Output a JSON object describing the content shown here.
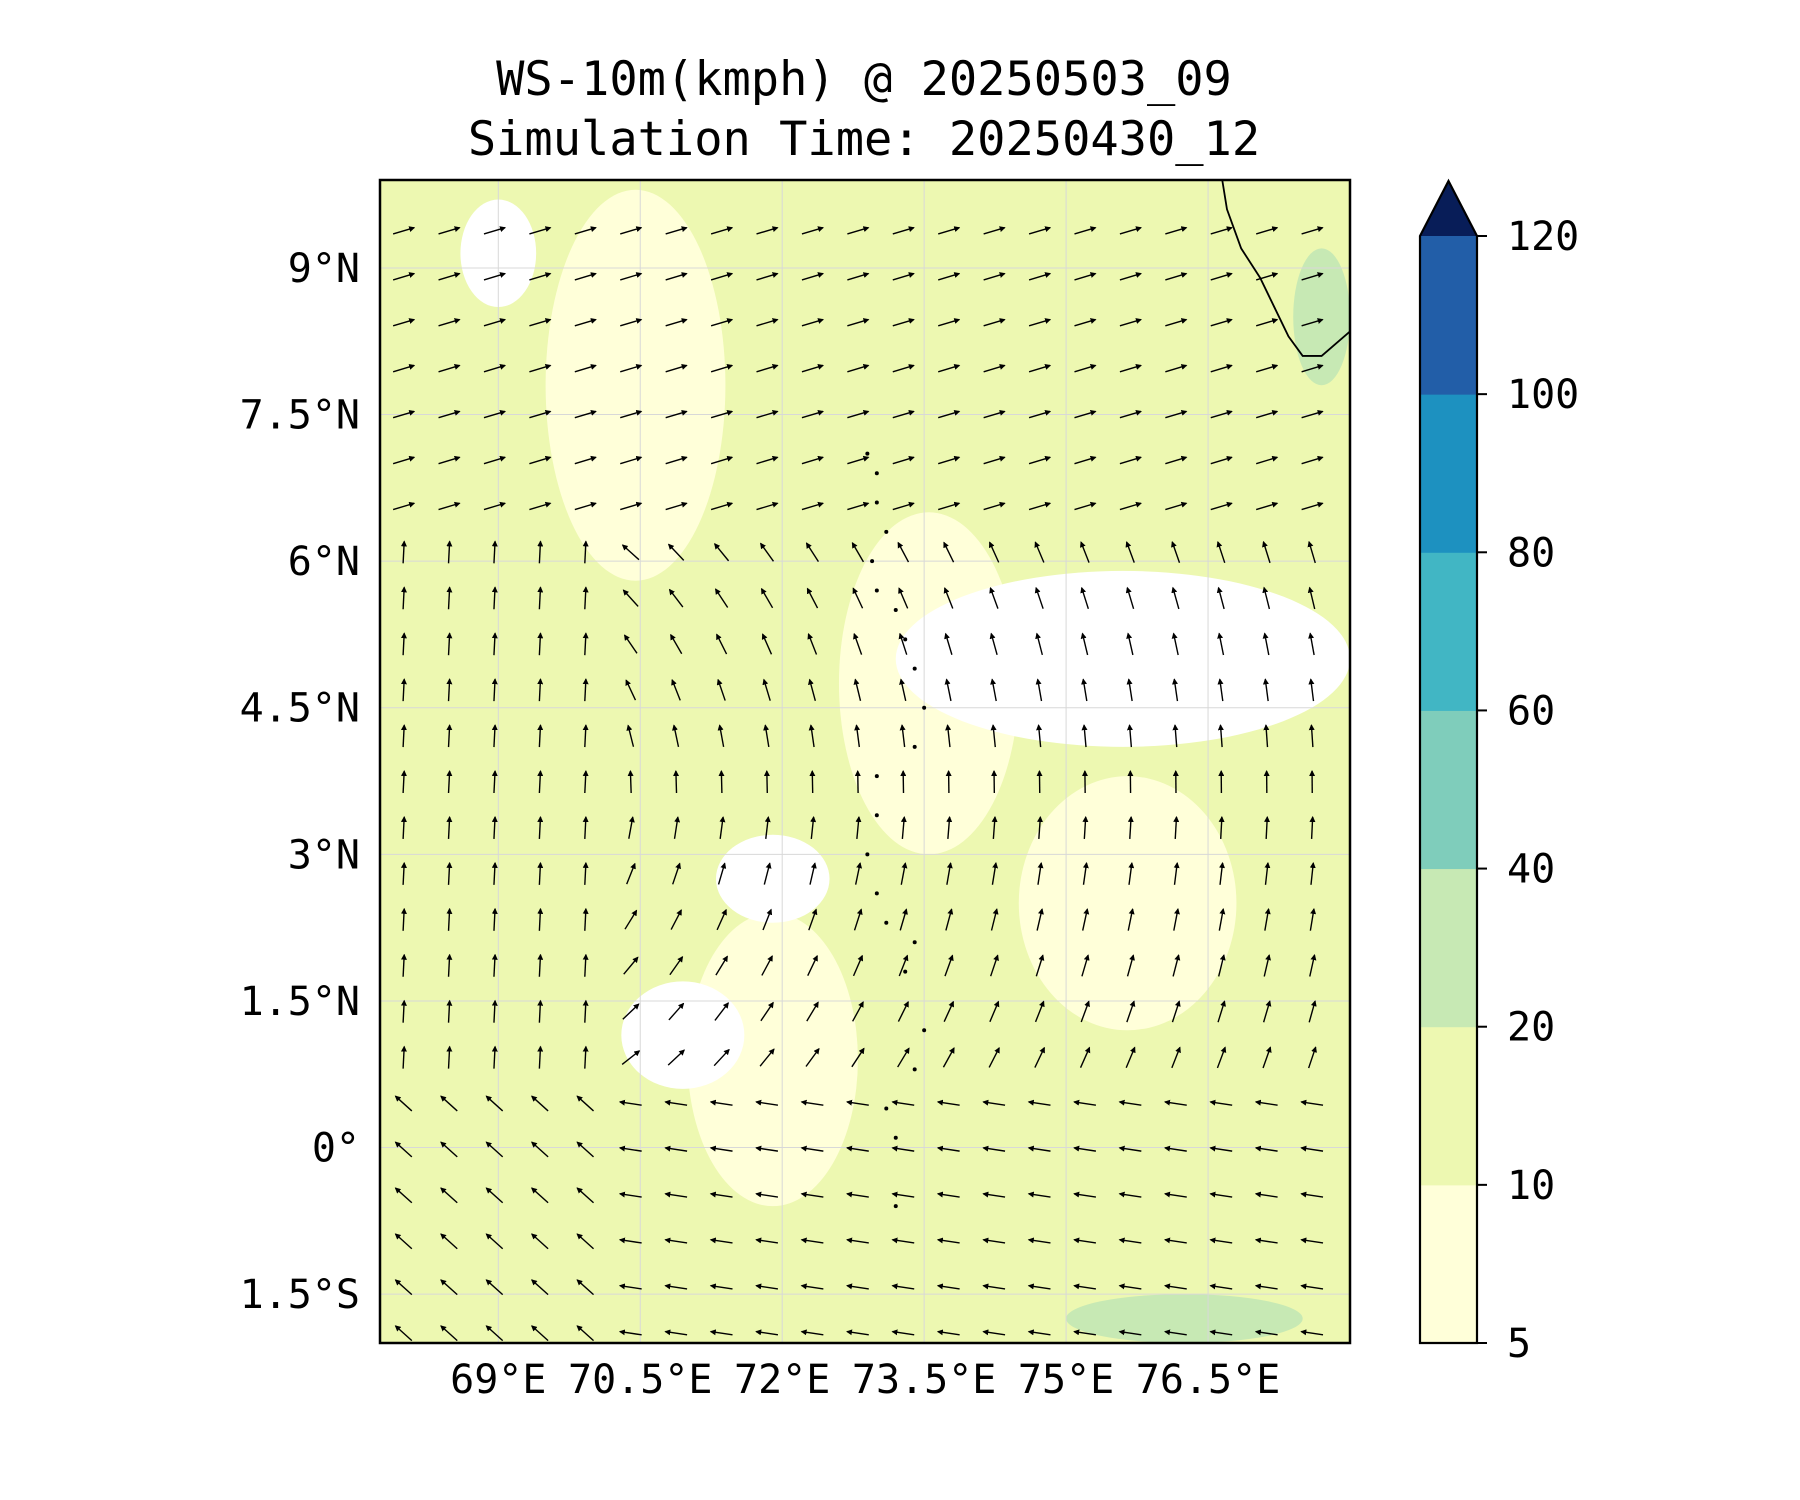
{
  "title": {
    "line1": "WS-10m(kmph) @ 20250503_09",
    "line2": "Simulation Time: 20250430_12"
  },
  "map": {
    "lon_range": [
      67.75,
      78.0
    ],
    "lat_range": [
      -2.0,
      9.9
    ],
    "gridlines": true,
    "x_ticks": [
      {
        "value": 69.0,
        "label": "69°E"
      },
      {
        "value": 70.5,
        "label": "70.5°E"
      },
      {
        "value": 72.0,
        "label": "72°E"
      },
      {
        "value": 73.5,
        "label": "73.5°E"
      },
      {
        "value": 75.0,
        "label": "75°E"
      },
      {
        "value": 76.5,
        "label": "76.5°E"
      }
    ],
    "y_ticks": [
      {
        "value": 9.0,
        "label": "9°N"
      },
      {
        "value": 7.5,
        "label": "7.5°N"
      },
      {
        "value": 6.0,
        "label": "6°N"
      },
      {
        "value": 4.5,
        "label": "4.5°N"
      },
      {
        "value": 3.0,
        "label": "3°N"
      },
      {
        "value": 1.5,
        "label": "1.5°N"
      },
      {
        "value": 0.0,
        "label": "0°"
      },
      {
        "value": -1.5,
        "label": "1.5°S"
      }
    ]
  },
  "colorbar": {
    "levels": [
      {
        "value": 5,
        "label": "5"
      },
      {
        "value": 10,
        "label": "10"
      },
      {
        "value": 20,
        "label": "20"
      },
      {
        "value": 40,
        "label": "40"
      },
      {
        "value": 60,
        "label": "60"
      },
      {
        "value": 80,
        "label": "80"
      },
      {
        "value": 100,
        "label": "100"
      },
      {
        "value": 120,
        "label": "120"
      }
    ],
    "colors": [
      "#ffffd9",
      "#edf8b1",
      "#c7e9b4",
      "#7fcdbb",
      "#41b6c4",
      "#1d91c0",
      "#225ea8",
      "#253494"
    ],
    "extend_color": "#081d58",
    "extend": "max"
  },
  "chart_data": {
    "type": "heatmap",
    "field": "10m wind speed with wind vectors",
    "title": "WS-10m(kmph) @ 20250503_09",
    "subtitle": "Simulation Time: 20250430_12",
    "colors": {
      "below_5": "#ffffff",
      "5_10": "#ffffd9",
      "10_20": "#edf8b1",
      "20_40": "#c7e9b4"
    },
    "calm_regions": [
      {
        "lon": [
          73.2,
          78.0
        ],
        "lat": [
          4.1,
          5.9
        ]
      },
      {
        "lon": [
          70.3,
          71.6
        ],
        "lat": [
          0.6,
          1.7
        ]
      },
      {
        "lon": [
          71.3,
          72.5
        ],
        "lat": [
          2.3,
          3.2
        ]
      },
      {
        "lon": [
          68.6,
          69.4
        ],
        "lat": [
          8.6,
          9.7
        ]
      }
    ],
    "stronger_regions": [
      {
        "lon": [
          75.0,
          77.5
        ],
        "lat": [
          -2.0,
          -1.5
        ]
      },
      {
        "lon": [
          77.4,
          78.0
        ],
        "lat": [
          7.8,
          9.2
        ]
      }
    ],
    "circulation_center": {
      "lon": 70.2,
      "lat": 3.5
    }
  },
  "coastline": {
    "label": ""
  }
}
